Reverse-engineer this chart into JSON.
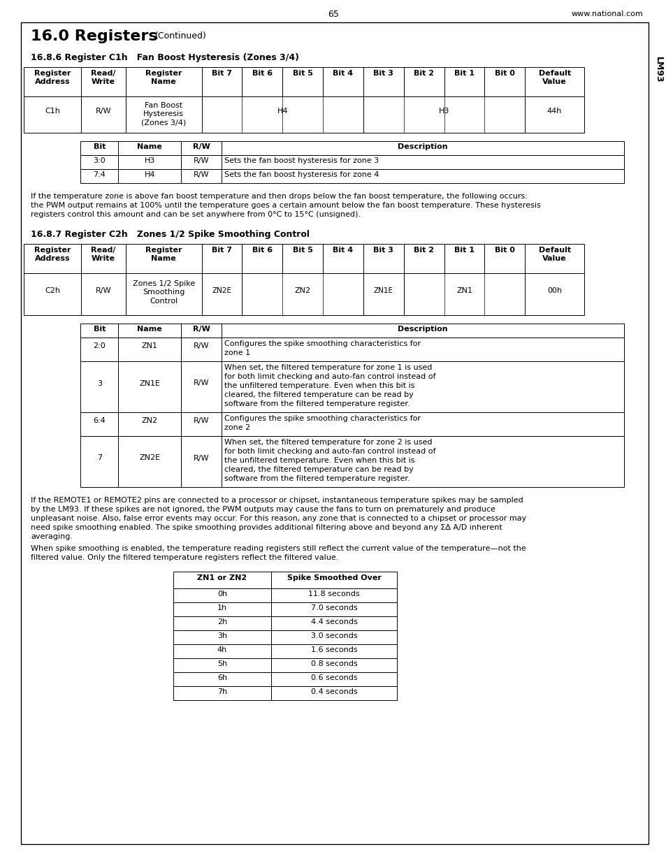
{
  "title_main": "16.0 Registers",
  "title_continued": "(Continued)",
  "section1_title": "16.8.6 Register C1h   Fan Boost Hysteresis (Zones 3/4)",
  "section2_title": "16.8.7 Register C2h   Zones 1/2 Spike Smoothing Control",
  "sidebar_text": "LM93",
  "page_num": "65",
  "website": "www.national.com",
  "reg_table_headers": [
    "Register\nAddress",
    "Read/\nWrite",
    "Register\nName",
    "Bit 7",
    "Bit 6",
    "Bit 5",
    "Bit 4",
    "Bit 3",
    "Bit 2",
    "Bit 1",
    "Bit 0",
    "Default\nValue"
  ],
  "reg1_row": [
    "C1h",
    "R/W",
    "Fan Boost\nHysteresis\n(Zones 3/4)",
    "H4",
    "H3",
    "44h"
  ],
  "bit_table1_headers": [
    "Bit",
    "Name",
    "R/W",
    "Description"
  ],
  "bit_table1_rows": [
    [
      "3:0",
      "H3",
      "R/W",
      "Sets the fan boost hysteresis for zone 3"
    ],
    [
      "7:4",
      "H4",
      "R/W",
      "Sets the fan boost hysteresis for zone 4"
    ]
  ],
  "para1_lines": [
    "If the temperature zone is above fan boost temperature and then drops below the fan boost temperature, the following occurs:",
    "the PWM output remains at 100% until the temperature goes a certain amount below the fan boost temperature. These hysteresis",
    "registers control this amount and can be set anywhere from 0°C to 15°C (unsigned)."
  ],
  "reg2_row": [
    "C2h",
    "R/W",
    "Zones 1/2 Spike\nSmoothing\nControl",
    "ZN2E",
    "ZN2",
    "ZN1E",
    "ZN1",
    "00h"
  ],
  "bit_table2_headers": [
    "Bit",
    "Name",
    "R/W",
    "Description"
  ],
  "bit_table2_rows": [
    [
      "2:0",
      "ZN1",
      "R/W",
      "Configures the spike smoothing characteristics for\nzone 1"
    ],
    [
      "3",
      "ZN1E",
      "R/W",
      "When set, the filtered temperature for zone 1 is used\nfor both limit checking and auto-fan control instead of\nthe unfiltered temperature. Even when this bit is\ncleared, the filtered temperature can be read by\nsoftware from the filtered temperature register."
    ],
    [
      "6:4",
      "ZN2",
      "R/W",
      "Configures the spike smoothing characteristics for\nzone 2"
    ],
    [
      "7",
      "ZN2E",
      "R/W",
      "When set, the filtered temperature for zone 2 is used\nfor both limit checking and auto-fan control instead of\nthe unfiltered temperature. Even when this bit is\ncleared, the filtered temperature can be read by\nsoftware from the filtered temperature register."
    ]
  ],
  "para2_lines": [
    "If the REMOTE1 or REMOTE2 pins are connected to a processor or chipset, instantaneous temperature spikes may be sampled",
    "by the LM93. If these spikes are not ignored, the PWM outputs may cause the fans to turn on prematurely and produce",
    "unpleasant noise. Also, false error events may occur. For this reason, any zone that is connected to a chipset or processor may",
    "need spike smoothing enabled. The spike smoothing provides additional filtering above and beyond any ΣΔ A/D inherent",
    "averaging."
  ],
  "para3_lines": [
    "When spike smoothing is enabled, the temperature reading registers still reflect the current value of the temperature—not the",
    "filtered value. Only the filtered temperature registers reflect the filtered value."
  ],
  "spike_table_headers": [
    "ZN1 or ZN2",
    "Spike Smoothed Over"
  ],
  "spike_table_rows": [
    [
      "0h",
      "11.8 seconds"
    ],
    [
      "1h",
      "7.0 seconds"
    ],
    [
      "2h",
      "4.4 seconds"
    ],
    [
      "3h",
      "3.0 seconds"
    ],
    [
      "4h",
      "1.6 seconds"
    ],
    [
      "5h",
      "0.8 seconds"
    ],
    [
      "6h",
      "0.6 seconds"
    ],
    [
      "7h",
      "0.4 seconds"
    ]
  ]
}
